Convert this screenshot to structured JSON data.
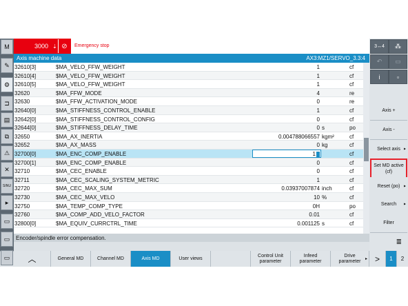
{
  "left_bar": {
    "items": [
      {
        "icon": "machine-icon",
        "glyph": "M"
      },
      {
        "icon": "program-edit-icon",
        "glyph": "✎"
      },
      {
        "icon": "settings-gear-icon",
        "glyph": "⚙"
      },
      {
        "icon": "parameter-icon",
        "glyph": "⊐"
      },
      {
        "icon": "program-manager-icon",
        "glyph": "▤"
      },
      {
        "icon": "copy-icon",
        "glyph": "⧉"
      },
      {
        "icon": "diagnostics-icon",
        "glyph": "⚠"
      },
      {
        "icon": "tool-wrench-icon",
        "glyph": "✕"
      },
      {
        "icon": "sinumerik-integrate-icon",
        "glyph": "SINU"
      },
      {
        "icon": "expand-arrow-icon",
        "glyph": "▸"
      },
      {
        "icon": "window-icon",
        "glyph": "▭"
      },
      {
        "icon": "keyboard-icon",
        "glyph": "▭"
      },
      {
        "icon": "display-icon",
        "glyph": "▭"
      }
    ]
  },
  "alarm": {
    "number": "3000",
    "arrow": "⇣",
    "ack_icon": "acknowledge-icon",
    "ack_glyph": "⊘",
    "text": "Emergency stop",
    "color": "#e8000f"
  },
  "title_bar": {
    "title": "Axis machine data",
    "axis": "AX3:MZ1/SERVO_3.3:4"
  },
  "table": {
    "rows": [
      {
        "num": "32610[3]",
        "name": "$MA_VELO_FFW_WEIGHT",
        "value": "1",
        "unit": "",
        "attr": "cf"
      },
      {
        "num": "32610[4]",
        "name": "$MA_VELO_FFW_WEIGHT",
        "value": "1",
        "unit": "",
        "attr": "cf"
      },
      {
        "num": "32610[5]",
        "name": "$MA_VELO_FFW_WEIGHT",
        "value": "1",
        "unit": "",
        "attr": "cf"
      },
      {
        "num": "32620",
        "name": "$MA_FFW_MODE",
        "value": "4",
        "unit": "",
        "attr": "re"
      },
      {
        "num": "32630",
        "name": "$MA_FFW_ACTIVATION_MODE",
        "value": "0",
        "unit": "",
        "attr": "re"
      },
      {
        "num": "32640[0]",
        "name": "$MA_STIFFNESS_CONTROL_ENABLE",
        "value": "1",
        "unit": "",
        "attr": "cf"
      },
      {
        "num": "32642[0]",
        "name": "$MA_STIFFNESS_CONTROL_CONFIG",
        "value": "0",
        "unit": "",
        "attr": "cf"
      },
      {
        "num": "32644[0]",
        "name": "$MA_STIFFNESS_DELAY_TIME",
        "value": "0",
        "unit": "s",
        "attr": "po"
      },
      {
        "num": "32650",
        "name": "$MA_AX_INERTIA",
        "value": "0.004788066557",
        "unit": "kgm²",
        "attr": "cf"
      },
      {
        "num": "32652",
        "name": "$MA_AX_MASS",
        "value": "0",
        "unit": "kg",
        "attr": "cf"
      },
      {
        "num": "32700[0]",
        "name": "$MA_ENC_COMP_ENABLE",
        "value": "1",
        "unit": "",
        "attr": "cf"
      },
      {
        "num": "32700[1]",
        "name": "$MA_ENC_COMP_ENABLE",
        "value": "0",
        "unit": "",
        "attr": "cf"
      },
      {
        "num": "32710",
        "name": "$MA_CEC_ENABLE",
        "value": "0",
        "unit": "",
        "attr": "cf"
      },
      {
        "num": "32711",
        "name": "$MA_CEC_SCALING_SYSTEM_METRIC",
        "value": "1",
        "unit": "",
        "attr": "cf"
      },
      {
        "num": "32720",
        "name": "$MA_CEC_MAX_SUM",
        "value": "0.03937007874",
        "unit": "inch",
        "attr": "cf"
      },
      {
        "num": "32730",
        "name": "$MA_CEC_MAX_VELO",
        "value": "10",
        "unit": "%",
        "attr": "cf"
      },
      {
        "num": "32750",
        "name": "$MA_TEMP_COMP_TYPE",
        "value": "0H",
        "unit": "",
        "attr": "po"
      },
      {
        "num": "32760",
        "name": "$MA_COMP_ADD_VELO_FACTOR",
        "value": "0.01",
        "unit": "",
        "attr": "cf"
      },
      {
        "num": "32800[0]",
        "name": "$MA_EQUIV_CURRCTRL_TIME",
        "value": "0.001125",
        "unit": "s",
        "attr": "cf"
      }
    ],
    "selected_index": 10
  },
  "status_text": "Encoder/spindle error compensation.",
  "right_panel": {
    "icons": [
      {
        "icon": "axis-switch-icon",
        "glyph": "3↔4"
      },
      {
        "icon": "channel-icon",
        "glyph": "⁂"
      },
      {
        "icon": "undo-icon",
        "glyph": "↶"
      },
      {
        "icon": "save-icon",
        "glyph": "▭"
      },
      {
        "icon": "info-icon",
        "glyph": "i"
      },
      {
        "icon": "screenshot-icon",
        "glyph": "▫"
      }
    ],
    "softkeys": [
      {
        "name": "axis-plus-softkey",
        "label": "Axis +",
        "arrow": ""
      },
      {
        "name": "axis-minus-softkey",
        "label": "Axis -",
        "arrow": ""
      },
      {
        "name": "select-axis-softkey",
        "label": "Select axis",
        "arrow": "▸"
      },
      {
        "name": "set-md-active-softkey",
        "label": "Set MD active (cf)",
        "arrow": ""
      },
      {
        "name": "reset-po-softkey",
        "label": "Reset (po)",
        "arrow": "▸"
      },
      {
        "name": "search-softkey",
        "label": "Search",
        "arrow": "▸"
      },
      {
        "name": "filter-softkey",
        "label": "Filter",
        "arrow": ""
      },
      {
        "name": "scroll-down-softkey",
        "label": "≣",
        "arrow": ""
      }
    ],
    "highlight_color": "#e8202a"
  },
  "bottom_bar": {
    "up_glyph": "︿",
    "softkeys": [
      {
        "name": "general-md-softkey",
        "label": "General MD",
        "arrow": ""
      },
      {
        "name": "channel-md-softkey",
        "label": "Channel MD",
        "arrow": ""
      },
      {
        "name": "axis-md-softkey",
        "label": "Axis MD",
        "arrow": ""
      },
      {
        "name": "user-views-softkey",
        "label": "User views",
        "arrow": ""
      },
      {
        "name": "blank-softkey",
        "label": "",
        "arrow": ""
      },
      {
        "name": "control-unit-parameter-softkey",
        "label": "Control Unit parameter",
        "arrow": ""
      },
      {
        "name": "infeed-parameter-softkey",
        "label": "Infeed parameter",
        "arrow": ""
      },
      {
        "name": "drive-parameter-softkey",
        "label": "Drive parameter",
        "arrow": "▸"
      }
    ],
    "next_glyph": ">",
    "pages": [
      "1",
      "2"
    ],
    "accent": "#1a8ec6"
  }
}
